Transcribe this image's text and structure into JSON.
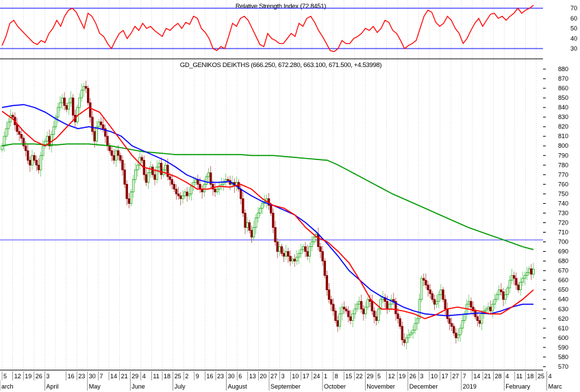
{
  "chart_data": {
    "type": "candlestick",
    "title": "GD_GENIKOS DEIKTHS (666.250, 672.280, 663.100, 671.500, +4.53998)",
    "rsi_title": "Relative Strength Index (72.8451)",
    "ylim": [
      565,
      885
    ],
    "y_ticks": [
      880,
      870,
      860,
      850,
      840,
      830,
      820,
      810,
      800,
      790,
      780,
      770,
      760,
      750,
      740,
      730,
      720,
      710,
      700,
      690,
      680,
      670,
      660,
      650,
      640,
      630,
      620,
      610,
      600,
      590,
      580,
      570
    ],
    "rsi_ticks": [
      70,
      60,
      50,
      40,
      30
    ],
    "rsi_levels": [
      70,
      30
    ],
    "horizontal_line": 702,
    "week_labels": [
      "5",
      "12",
      "19",
      "26",
      "3",
      "16",
      "23",
      "30",
      "7",
      "14",
      "21",
      "29",
      "4",
      "11",
      "18",
      "25",
      "2",
      "9",
      "16",
      "23",
      "30",
      "6",
      "13",
      "20",
      "27",
      "3",
      "10",
      "17",
      "24",
      "1",
      "8",
      "15",
      "22",
      "29",
      "5",
      "12",
      "19",
      "26",
      "3",
      "10",
      "17",
      "27",
      "7",
      "14",
      "21",
      "28",
      "4",
      "11",
      "18",
      "25",
      "4"
    ],
    "month_labels": [
      {
        "label": "arch",
        "week": 0
      },
      {
        "label": "April",
        "week": 4
      },
      {
        "label": "May",
        "week": 8
      },
      {
        "label": "June",
        "week": 12
      },
      {
        "label": "July",
        "week": 16
      },
      {
        "label": "August",
        "week": 21
      },
      {
        "label": "September",
        "week": 25
      },
      {
        "label": "October",
        "week": 30
      },
      {
        "label": "November",
        "week": 34
      },
      {
        "label": "December",
        "week": 38
      },
      {
        "label": "2019",
        "week": 43
      },
      {
        "label": "February",
        "week": 47
      },
      {
        "label": "Marc",
        "week": 51
      }
    ],
    "close": [
      800,
      810,
      818,
      825,
      832,
      830,
      822,
      815,
      812,
      808,
      800,
      795,
      785,
      780,
      790,
      785,
      780,
      775,
      790,
      800,
      805,
      810,
      800,
      812,
      820,
      830,
      840,
      845,
      850,
      842,
      838,
      845,
      850,
      832,
      825,
      840,
      850,
      858,
      862,
      860,
      845,
      830,
      815,
      805,
      820,
      825,
      822,
      818,
      810,
      800,
      795,
      790,
      785,
      795,
      790,
      785,
      775,
      760,
      745,
      740,
      752,
      765,
      775,
      780,
      788,
      785,
      770,
      762,
      772,
      778,
      770,
      765,
      778,
      782,
      770,
      775,
      780,
      768,
      765,
      760,
      755,
      750,
      748,
      745,
      748,
      752,
      748,
      750,
      758,
      762,
      765,
      760,
      755,
      752,
      760,
      768,
      772,
      760,
      755,
      752,
      755,
      758,
      760,
      762,
      765,
      764,
      760,
      762,
      758,
      762,
      755,
      745,
      730,
      715,
      720,
      712,
      705,
      715,
      725,
      730,
      735,
      740,
      742,
      745,
      738,
      730,
      715,
      700,
      690,
      695,
      688,
      685,
      690,
      685,
      680,
      682,
      680,
      684,
      688,
      692,
      695,
      690,
      685,
      695,
      700,
      705,
      708,
      695,
      690,
      680,
      665,
      650,
      640,
      635,
      628,
      618,
      612,
      625,
      632,
      630,
      628,
      622,
      618,
      625,
      630,
      635,
      638,
      630,
      625,
      632,
      640,
      638,
      628,
      622,
      618,
      630,
      640,
      642,
      638,
      630,
      635,
      640,
      638,
      625,
      620,
      612,
      598,
      595,
      600,
      603,
      605,
      608,
      615,
      620,
      640,
      662,
      660,
      655,
      650,
      646,
      640,
      635,
      638,
      645,
      650,
      640,
      630,
      620,
      615,
      612,
      605,
      600,
      603,
      610,
      618,
      625,
      635,
      638,
      632,
      628,
      622,
      618,
      615,
      625,
      628,
      630,
      632,
      628,
      635,
      640,
      645,
      650,
      648,
      640,
      645,
      652,
      660,
      665,
      662,
      655,
      650,
      658,
      662,
      665,
      668,
      672,
      666.25,
      671.5
    ],
    "ma_fast_weekly": [
      836,
      828,
      815,
      805,
      800,
      808,
      820,
      832,
      840,
      835,
      820,
      805,
      790,
      778,
      775,
      772,
      768,
      762,
      755,
      755,
      758,
      757,
      760,
      755,
      745,
      738,
      735,
      728,
      715,
      705,
      700,
      690,
      678,
      660,
      640,
      630,
      630,
      628,
      625,
      620,
      624,
      630,
      632,
      630,
      628,
      625,
      625,
      632,
      640,
      650
    ],
    "ma_mid_weekly": [
      840,
      842,
      843,
      840,
      835,
      828,
      822,
      818,
      820,
      818,
      815,
      810,
      800,
      795,
      790,
      785,
      778,
      770,
      765,
      762,
      762,
      763,
      755,
      748,
      742,
      738,
      733,
      728,
      720,
      710,
      698,
      685,
      670,
      660,
      650,
      643,
      638,
      632,
      628,
      625,
      624,
      623,
      624,
      625,
      626,
      625,
      628,
      632,
      635,
      635
    ],
    "ma_slow_weekly": [
      800,
      802,
      802,
      802,
      801,
      801,
      802,
      802,
      802,
      801,
      800,
      798,
      796,
      794,
      793,
      792,
      791,
      791,
      791,
      791,
      791,
      791,
      791,
      790,
      790,
      790,
      789,
      788,
      787,
      786,
      785,
      780,
      774,
      768,
      762,
      756,
      750,
      745,
      740,
      735,
      730,
      725,
      720,
      715,
      711,
      707,
      703,
      699,
      695,
      692
    ],
    "rsi": [
      33,
      42,
      55,
      58,
      52,
      48,
      44,
      40,
      36,
      34,
      38,
      36,
      45,
      50,
      58,
      52,
      62,
      68,
      70,
      66,
      58,
      50,
      65,
      62,
      55,
      45,
      42,
      35,
      30,
      38,
      45,
      48,
      40,
      45,
      52,
      48,
      55,
      50,
      52,
      48,
      45,
      42,
      50,
      48,
      52,
      55,
      50,
      56,
      54,
      62,
      60,
      50,
      46,
      40,
      30,
      28,
      32,
      30,
      42,
      55,
      52,
      60,
      62,
      58,
      50,
      42,
      34,
      32,
      45,
      40,
      38,
      35,
      35,
      40,
      45,
      42,
      55,
      52,
      60,
      62,
      56,
      48,
      42,
      35,
      28,
      27,
      30,
      38,
      35,
      35,
      40,
      42,
      45,
      50,
      48,
      52,
      46,
      50,
      58,
      56,
      48,
      45,
      38,
      30,
      33,
      35,
      38,
      50,
      62,
      68,
      66,
      56,
      52,
      55,
      62,
      58,
      50,
      45,
      35,
      40,
      48,
      55,
      60,
      52,
      58,
      64,
      65,
      60,
      62,
      58,
      62,
      65,
      70,
      65,
      68,
      70,
      72.8451
    ],
    "colors": {
      "up": "#22aa22",
      "down": "#8b0000",
      "ma_fast": "#ff0000",
      "ma_mid": "#0000ff",
      "ma_slow": "#009900",
      "rsi": "#ff0000",
      "level": "#0000ff",
      "grid": "#b8b8b8"
    }
  }
}
